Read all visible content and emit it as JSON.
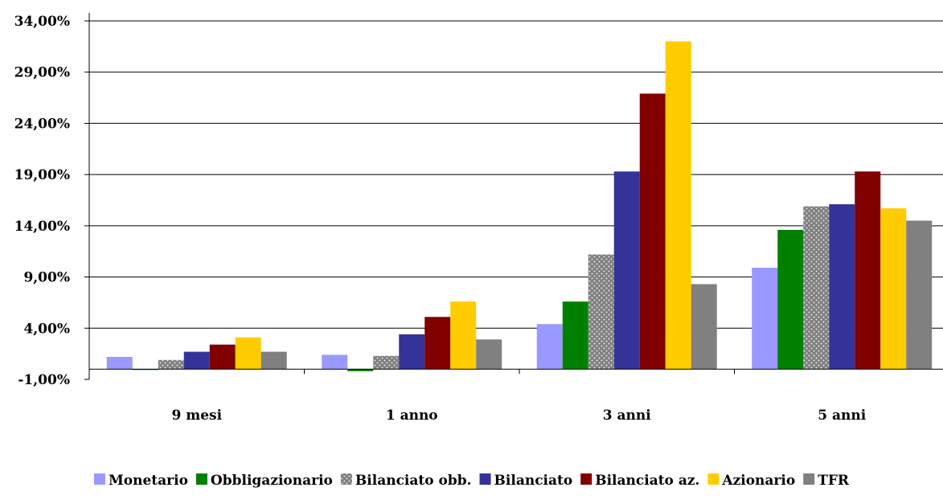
{
  "chart_data": {
    "type": "bar",
    "categories": [
      "9 mesi",
      "1 anno",
      "3 anni",
      "5 anni"
    ],
    "y_ticks": [
      "-1,00%",
      "4,00%",
      "9,00%",
      "14,00%",
      "19,00%",
      "24,00%",
      "29,00%",
      "34,00%"
    ],
    "ylim": [
      -1,
      34
    ],
    "grid": "horizontal",
    "legend_position": "bottom",
    "series": [
      {
        "name": "Monetario",
        "color": "#9999ff",
        "pattern": "solid",
        "values": [
          1.2,
          1.4,
          4.4,
          9.9
        ]
      },
      {
        "name": "Obbligazionario",
        "color": "#008000",
        "pattern": "solid",
        "values": [
          0.0,
          -0.2,
          6.6,
          13.6
        ]
      },
      {
        "name": "Bilanciato obb.",
        "color": "#808080",
        "pattern": "dotted",
        "values": [
          0.9,
          1.3,
          11.2,
          15.9
        ]
      },
      {
        "name": "Bilanciato",
        "color": "#333399",
        "pattern": "solid",
        "values": [
          1.7,
          3.4,
          19.3,
          16.1
        ]
      },
      {
        "name": "Bilanciato az.",
        "color": "#800000",
        "pattern": "solid",
        "values": [
          2.4,
          5.1,
          26.9,
          19.3
        ]
      },
      {
        "name": "Azionario",
        "color": "#ffcc00",
        "pattern": "solid",
        "values": [
          3.1,
          6.6,
          32.0,
          15.7
        ]
      },
      {
        "name": "TFR",
        "color": "#808080",
        "pattern": "solid",
        "values": [
          1.7,
          2.9,
          8.3,
          14.5
        ]
      }
    ]
  }
}
